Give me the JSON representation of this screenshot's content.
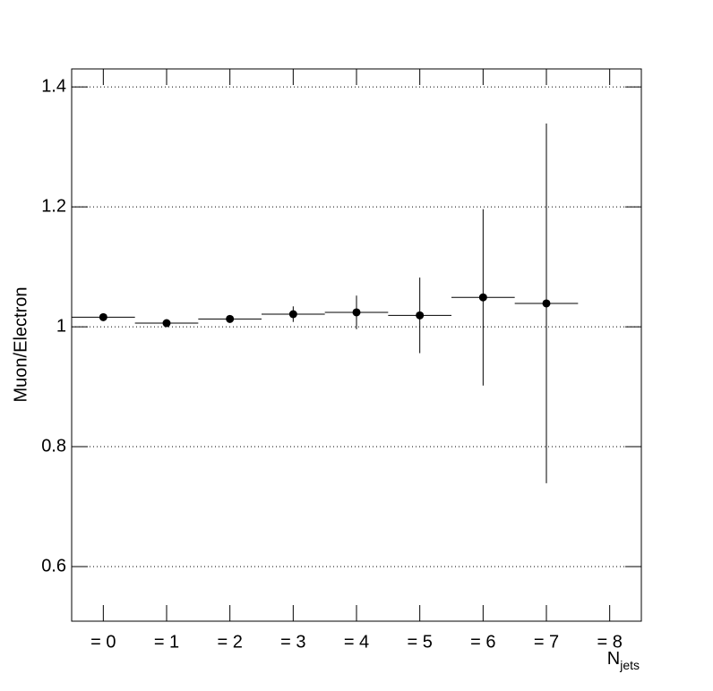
{
  "chart_data": {
    "type": "errorbar",
    "x_label": "N",
    "x_label_sub": "jets",
    "y_label": "Muon/Electron",
    "categories": [
      "= 0",
      "= 1",
      "= 2",
      "= 3",
      "= 4",
      "= 5",
      "= 6",
      "= 7",
      "= 8"
    ],
    "values": [
      1.016,
      1.006,
      1.013,
      1.021,
      1.024,
      1.019,
      1.049,
      1.039,
      null
    ],
    "errors": [
      0.003,
      0.003,
      0.004,
      0.013,
      0.028,
      0.063,
      0.147,
      0.3,
      null
    ],
    "color": "#000000",
    "ylim": [
      0.509,
      1.43
    ],
    "yticks": [
      0.6,
      0.8,
      1,
      1.2,
      1.4
    ],
    "grid": true
  }
}
